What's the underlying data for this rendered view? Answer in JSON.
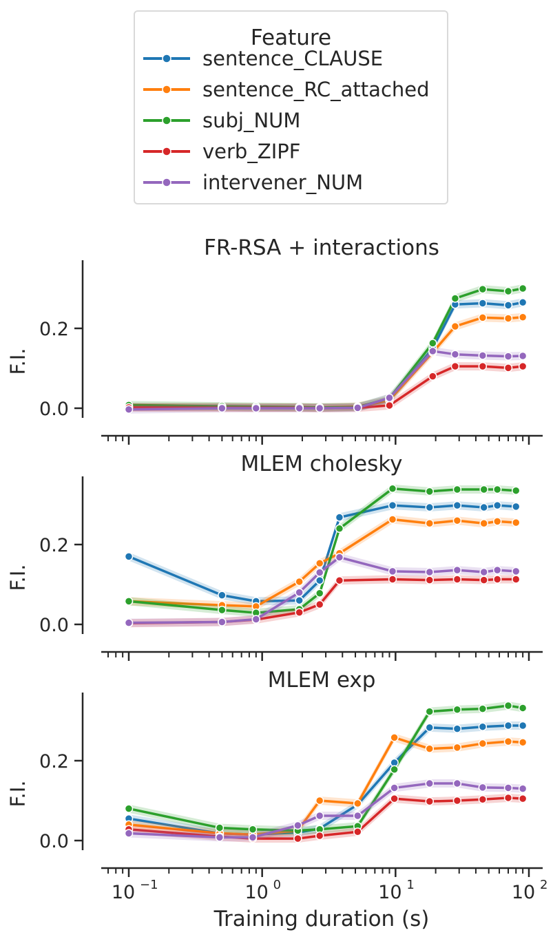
{
  "chart_data": [
    {
      "type": "line",
      "title": "FR-RSA + interactions",
      "ylabel": "F.I.",
      "xlabel": "",
      "xscale": "log",
      "ylim": [
        -0.02,
        0.35
      ],
      "yticks": [
        0.0,
        0.2
      ],
      "ytick_labels": [
        "0.0",
        "0.2"
      ],
      "series": [
        {
          "name": "sentence_CLAUSE",
          "color": "#1f77b4",
          "x": [
            0.1,
            0.5,
            0.9,
            1.9,
            2.7,
            5.2,
            9,
            19,
            28,
            45,
            70,
            90
          ],
          "y": [
            0.003,
            0.003,
            0.002,
            0.002,
            0.002,
            0.003,
            0.02,
            0.15,
            0.26,
            0.263,
            0.258,
            0.265
          ]
        },
        {
          "name": "sentence_RC_attached",
          "color": "#ff7f0e",
          "x": [
            0.1,
            0.5,
            0.9,
            1.9,
            2.7,
            5.2,
            9,
            19,
            28,
            45,
            70,
            90
          ],
          "y": [
            0.003,
            0.003,
            0.002,
            0.002,
            0.002,
            0.004,
            0.02,
            0.14,
            0.205,
            0.227,
            0.225,
            0.228
          ]
        },
        {
          "name": "subj_NUM",
          "color": "#2ca02c",
          "x": [
            0.1,
            0.5,
            0.9,
            1.9,
            2.7,
            5.2,
            9,
            19,
            28,
            45,
            70,
            90
          ],
          "y": [
            0.008,
            0.005,
            0.004,
            0.003,
            0.002,
            0.003,
            0.025,
            0.163,
            0.275,
            0.298,
            0.293,
            0.3
          ]
        },
        {
          "name": "verb_ZIPF",
          "color": "#d62728",
          "x": [
            0.1,
            0.5,
            0.9,
            1.9,
            2.7,
            5.2,
            9,
            19,
            28,
            45,
            70,
            90
          ],
          "y": [
            0.002,
            0.001,
            0.001,
            0.001,
            0.0,
            0.001,
            0.007,
            0.08,
            0.105,
            0.105,
            0.101,
            0.105
          ]
        },
        {
          "name": "intervener_NUM",
          "color": "#9467bd",
          "x": [
            0.1,
            0.5,
            0.9,
            1.9,
            2.7,
            5.2,
            9,
            19,
            28,
            45,
            70,
            90
          ],
          "y": [
            -0.003,
            0.0,
            0.0,
            0.0,
            0.0,
            0.001,
            0.026,
            0.143,
            0.135,
            0.132,
            0.13,
            0.131
          ]
        }
      ]
    },
    {
      "type": "line",
      "title": "MLEM cholesky",
      "ylabel": "F.I.",
      "xlabel": "",
      "xscale": "log",
      "ylim": [
        -0.02,
        0.37
      ],
      "yticks": [
        0.0,
        0.2
      ],
      "ytick_labels": [
        "0.0",
        "0.2"
      ],
      "series": [
        {
          "name": "sentence_CLAUSE",
          "color": "#1f77b4",
          "x": [
            0.1,
            0.5,
            0.9,
            1.9,
            2.7,
            3.8,
            9.5,
            18,
            29,
            46,
            58,
            80
          ],
          "y": [
            0.17,
            0.073,
            0.058,
            0.06,
            0.11,
            0.268,
            0.298,
            0.293,
            0.298,
            0.293,
            0.298,
            0.295
          ]
        },
        {
          "name": "sentence_RC_attached",
          "color": "#ff7f0e",
          "x": [
            0.1,
            0.5,
            0.9,
            1.9,
            2.7,
            3.8,
            9.5,
            18,
            29,
            46,
            58,
            80
          ],
          "y": [
            0.058,
            0.048,
            0.045,
            0.107,
            0.153,
            0.178,
            0.263,
            0.253,
            0.26,
            0.253,
            0.258,
            0.255
          ]
        },
        {
          "name": "subj_NUM",
          "color": "#2ca02c",
          "x": [
            0.1,
            0.5,
            0.9,
            1.9,
            2.7,
            3.8,
            9.5,
            18,
            29,
            46,
            58,
            80
          ],
          "y": [
            0.058,
            0.036,
            0.029,
            0.038,
            0.078,
            0.24,
            0.34,
            0.333,
            0.338,
            0.338,
            0.338,
            0.335
          ]
        },
        {
          "name": "verb_ZIPF",
          "color": "#d62728",
          "x": [
            0.1,
            0.5,
            0.9,
            1.9,
            2.7,
            3.8,
            9.5,
            18,
            29,
            46,
            58,
            80
          ],
          "y": [
            0.003,
            0.006,
            0.012,
            0.03,
            0.05,
            0.11,
            0.113,
            0.111,
            0.113,
            0.111,
            0.113,
            0.113
          ]
        },
        {
          "name": "intervener_NUM",
          "color": "#9467bd",
          "x": [
            0.1,
            0.5,
            0.9,
            1.9,
            2.7,
            3.8,
            9.5,
            18,
            29,
            46,
            58,
            80
          ],
          "y": [
            0.004,
            0.006,
            0.013,
            0.08,
            0.13,
            0.168,
            0.133,
            0.131,
            0.136,
            0.131,
            0.136,
            0.133
          ]
        }
      ]
    },
    {
      "type": "line",
      "title": "MLEM exp",
      "ylabel": "F.I.",
      "xlabel": "Training duration (s)",
      "xscale": "log",
      "xlim": [
        0.07,
        120
      ],
      "xticks": [
        0.1,
        1,
        10,
        100
      ],
      "xtick_labels": [
        "10",
        "10",
        "10",
        "10"
      ],
      "xtick_exponents": [
        "−1",
        "0",
        "1",
        "2"
      ],
      "ylim": [
        -0.02,
        0.37
      ],
      "yticks": [
        0.0,
        0.2
      ],
      "ytick_labels": [
        "0.0",
        "0.2"
      ],
      "series": [
        {
          "name": "sentence_CLAUSE",
          "color": "#1f77b4",
          "x": [
            0.1,
            0.48,
            0.85,
            1.85,
            2.7,
            5.2,
            9.8,
            18,
            29,
            45,
            70,
            90
          ],
          "y": [
            0.055,
            0.018,
            0.015,
            0.02,
            0.03,
            0.09,
            0.195,
            0.283,
            0.28,
            0.285,
            0.288,
            0.288
          ]
        },
        {
          "name": "sentence_RC_attached",
          "color": "#ff7f0e",
          "x": [
            0.1,
            0.48,
            0.85,
            1.85,
            2.7,
            5.2,
            9.8,
            18,
            29,
            45,
            70,
            90
          ],
          "y": [
            0.04,
            0.018,
            0.015,
            0.025,
            0.1,
            0.093,
            0.258,
            0.23,
            0.233,
            0.243,
            0.248,
            0.246
          ]
        },
        {
          "name": "subj_NUM",
          "color": "#2ca02c",
          "x": [
            0.1,
            0.48,
            0.85,
            1.85,
            2.7,
            5.2,
            9.8,
            18,
            29,
            45,
            70,
            90
          ],
          "y": [
            0.08,
            0.032,
            0.028,
            0.025,
            0.028,
            0.036,
            0.178,
            0.323,
            0.328,
            0.33,
            0.338,
            0.332
          ]
        },
        {
          "name": "verb_ZIPF",
          "color": "#d62728",
          "x": [
            0.1,
            0.48,
            0.85,
            1.85,
            2.7,
            5.2,
            9.8,
            18,
            29,
            45,
            70,
            90
          ],
          "y": [
            0.028,
            0.01,
            0.005,
            0.005,
            0.012,
            0.022,
            0.105,
            0.098,
            0.1,
            0.103,
            0.107,
            0.105
          ]
        },
        {
          "name": "intervener_NUM",
          "color": "#9467bd",
          "x": [
            0.1,
            0.48,
            0.85,
            1.85,
            2.7,
            5.2,
            9.8,
            18,
            29,
            45,
            70,
            90
          ],
          "y": [
            0.018,
            0.008,
            0.008,
            0.038,
            0.062,
            0.062,
            0.132,
            0.143,
            0.143,
            0.133,
            0.132,
            0.13
          ]
        }
      ]
    }
  ],
  "legend": {
    "title": "Feature",
    "placement": "top-center",
    "items": [
      {
        "label": "sentence_CLAUSE",
        "color": "#1f77b4"
      },
      {
        "label": "sentence_RC_attached",
        "color": "#ff7f0e"
      },
      {
        "label": "subj_NUM",
        "color": "#2ca02c"
      },
      {
        "label": "verb_ZIPF",
        "color": "#d62728"
      },
      {
        "label": "intervener_NUM",
        "color": "#9467bd"
      }
    ]
  }
}
